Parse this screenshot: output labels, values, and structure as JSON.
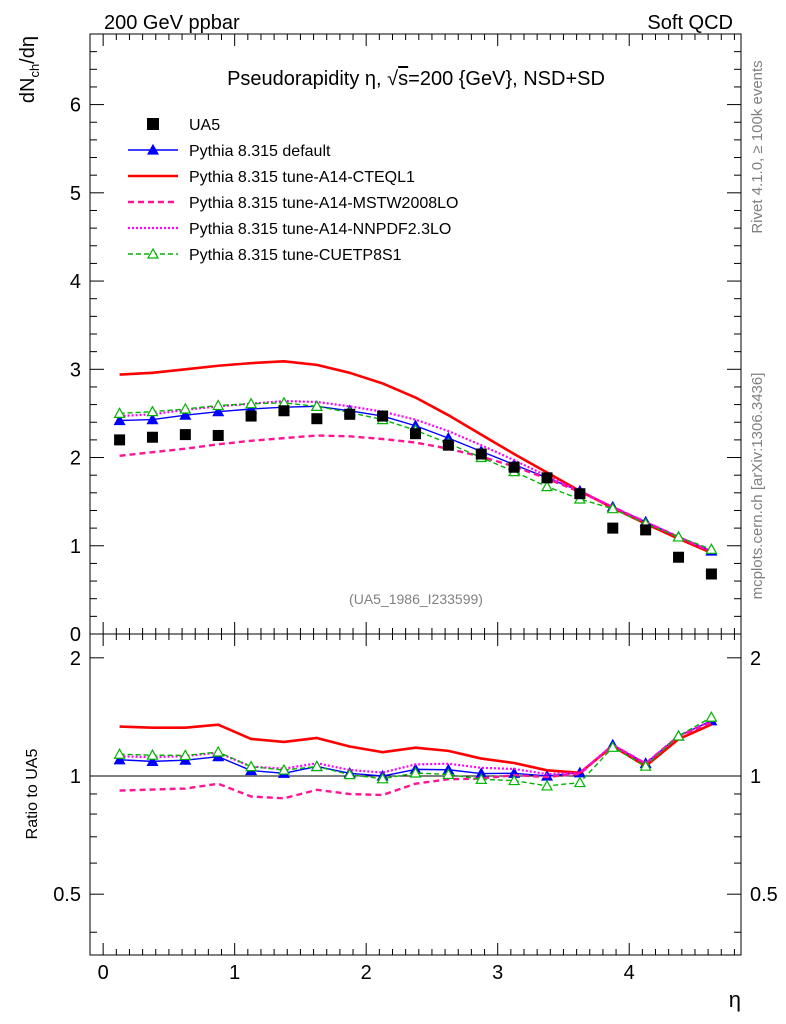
{
  "header": {
    "left": "200 GeV ppbar",
    "right": "Soft QCD"
  },
  "side_labels": {
    "rivet": "Rivet 4.1.0, ≥ 100k events",
    "mcplots": "mcplots.cern.ch [arXiv:1306.3436]"
  },
  "chart_data": {
    "type": "line",
    "title_prefix": "Pseudorapidity η, √",
    "title_s": "s",
    "title_suffix": "=200 {GeV}, NSD+SD",
    "analysis_id": "(UA5_1986_I233599)",
    "xlabel": "η",
    "ylabel_main": "dN",
    "ylabel_sub": "ch",
    "ylabel_tail": "/dη",
    "ratio_ylabel": "Ratio to UA5",
    "xlim": [
      -0.1,
      4.85
    ],
    "ylim": [
      0,
      6.8
    ],
    "ratio_ylim": [
      0.35,
      2.3
    ],
    "x_ticks": [
      {
        "value": 0,
        "label": "0"
      },
      {
        "value": 1,
        "label": "1"
      },
      {
        "value": 2,
        "label": "2"
      },
      {
        "value": 3,
        "label": "3"
      },
      {
        "value": 4,
        "label": "4"
      }
    ],
    "y_ticks": [
      {
        "value": 0,
        "label": "0"
      },
      {
        "value": 1,
        "label": "1"
      },
      {
        "value": 2,
        "label": "2"
      },
      {
        "value": 3,
        "label": "3"
      },
      {
        "value": 4,
        "label": "4"
      },
      {
        "value": 5,
        "label": "5"
      },
      {
        "value": 6,
        "label": "6"
      }
    ],
    "ratio_ticks": [
      {
        "value": 0.5,
        "label": "0.5"
      },
      {
        "value": 1,
        "label": "1"
      },
      {
        "value": 2,
        "label": "2"
      }
    ],
    "x": [
      0.125,
      0.375,
      0.625,
      0.875,
      1.125,
      1.375,
      1.625,
      1.875,
      2.125,
      2.375,
      2.625,
      2.875,
      3.125,
      3.375,
      3.625,
      3.875,
      4.125,
      4.375,
      4.625
    ],
    "data": {
      "name": "UA5",
      "color": "#000000",
      "values": [
        2.2,
        2.23,
        2.26,
        2.25,
        2.47,
        2.53,
        2.44,
        2.49,
        2.47,
        2.27,
        2.14,
        2.04,
        1.89,
        1.77,
        1.59,
        1.2,
        1.18,
        0.87,
        0.68
      ]
    },
    "series": [
      {
        "name": "Pythia 8.315 default",
        "color": "#0000ff",
        "dash": "",
        "width": 1.4,
        "marker": "filled-triangle",
        "values": [
          2.42,
          2.43,
          2.48,
          2.52,
          2.55,
          2.57,
          2.58,
          2.53,
          2.47,
          2.36,
          2.22,
          2.07,
          1.92,
          1.77,
          1.62,
          1.44,
          1.27,
          1.1,
          0.94
        ]
      },
      {
        "name": "Pythia 8.315 tune-A14-CTEQL1",
        "color": "#ff0000",
        "dash": "",
        "width": 2.6,
        "marker": "none",
        "values": [
          2.94,
          2.96,
          3.0,
          3.04,
          3.07,
          3.09,
          3.05,
          2.96,
          2.84,
          2.68,
          2.48,
          2.26,
          2.04,
          1.83,
          1.62,
          1.43,
          1.25,
          1.08,
          0.92
        ]
      },
      {
        "name": "Pythia 8.315 tune-A14-MSTW2008LO",
        "color": "#ff1493",
        "dash": "6,4",
        "width": 2.4,
        "marker": "none",
        "values": [
          2.02,
          2.06,
          2.1,
          2.15,
          2.19,
          2.22,
          2.25,
          2.24,
          2.21,
          2.17,
          2.1,
          2.01,
          1.9,
          1.76,
          1.61,
          1.44,
          1.27,
          1.1,
          0.93
        ]
      },
      {
        "name": "Pythia 8.315 tune-A14-NNPDF2.3LO",
        "color": "#ff00ff",
        "dash": "2,2",
        "width": 2.2,
        "marker": "none",
        "values": [
          2.47,
          2.49,
          2.54,
          2.58,
          2.61,
          2.64,
          2.63,
          2.58,
          2.52,
          2.43,
          2.3,
          2.14,
          1.97,
          1.79,
          1.62,
          1.44,
          1.27,
          1.1,
          0.94
        ]
      },
      {
        "name": "Pythia 8.315 tune-CUETP8S1",
        "color": "#00b400",
        "dash": "5,3",
        "width": 1.4,
        "marker": "open-triangle",
        "values": [
          2.5,
          2.52,
          2.55,
          2.59,
          2.61,
          2.62,
          2.58,
          2.51,
          2.43,
          2.31,
          2.16,
          2.0,
          1.84,
          1.67,
          1.53,
          1.42,
          1.25,
          1.1,
          0.96
        ]
      }
    ]
  }
}
